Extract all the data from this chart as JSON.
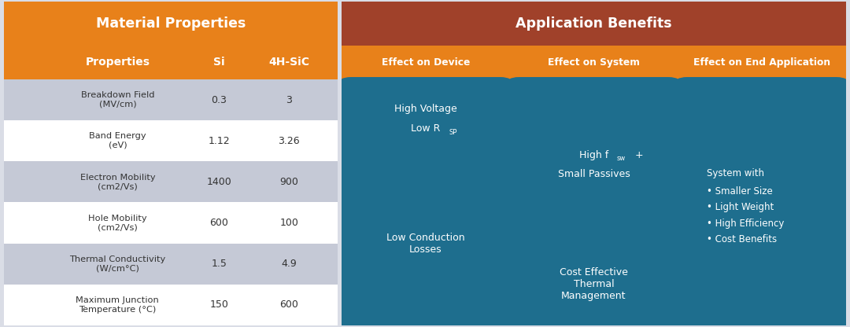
{
  "left_title": "Material Properties",
  "left_header_color": "#E8811A",
  "left_subheader_color": "#E8811A",
  "col_headers": [
    "Properties",
    "Si",
    "4H-SiC"
  ],
  "rows": [
    {
      "label": "Breakdown Field\n(MV/cm)",
      "si": "0.3",
      "sic": "3",
      "bg": "#C5C9D6"
    },
    {
      "label": "Band Energy\n(eV)",
      "si": "1.12",
      "sic": "3.26",
      "bg": "#FFFFFF"
    },
    {
      "label": "Electron Mobility\n(cm2/Vs)",
      "si": "1400",
      "sic": "900",
      "bg": "#C5C9D6"
    },
    {
      "label": "Hole Mobility\n(cm2/Vs)",
      "si": "600",
      "sic": "100",
      "bg": "#FFFFFF"
    },
    {
      "label": "Thermal Conductivity\n(W/cm°C)",
      "si": "1.5",
      "sic": "4.9",
      "bg": "#C5C9D6"
    },
    {
      "label": "Maximum Junction\nTemperature (°C)",
      "si": "150",
      "sic": "600",
      "bg": "#FFFFFF"
    }
  ],
  "right_title": "Application Benefits",
  "right_title_color": "#A0412A",
  "right_subheader_color": "#E8811A",
  "right_col_headers": [
    "Effect on Device",
    "Effect on System",
    "Effect on End Application"
  ],
  "right_row_colors": [
    "#C5C9D6",
    "#DCDFE6",
    "#C5C9D6"
  ],
  "box_color": "#1E6E8E",
  "box_text_color": "#FFFFFF",
  "fig_bg": "#DADDE6",
  "left_panel_bg": "#FFFFFF"
}
